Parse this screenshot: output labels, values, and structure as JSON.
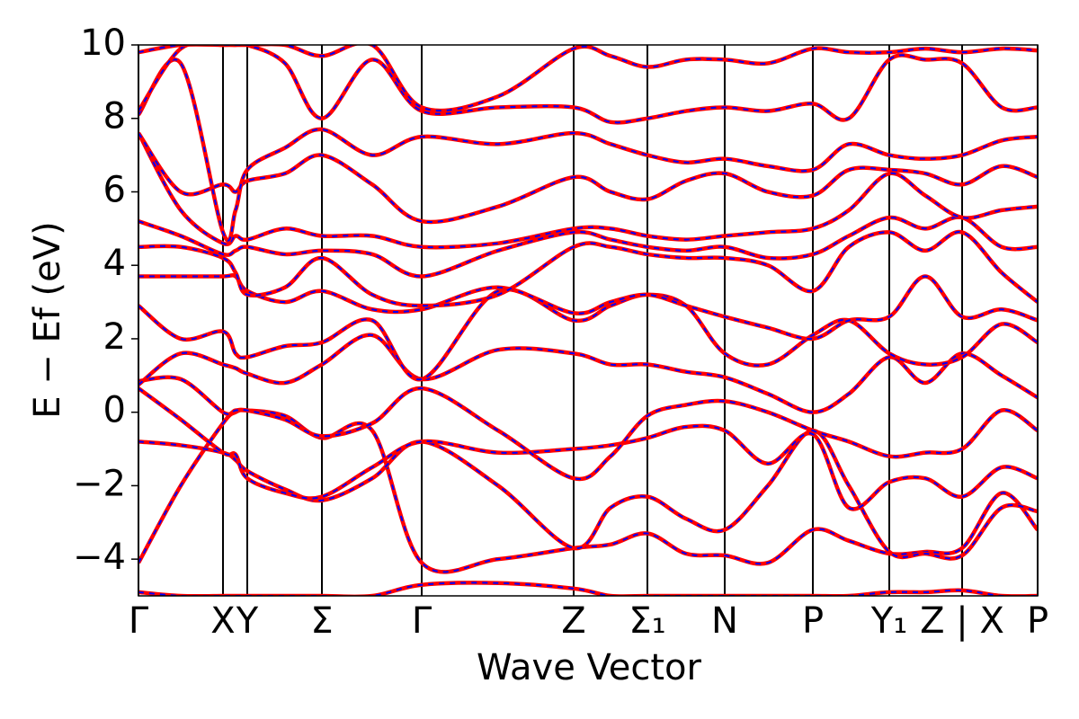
{
  "chart_data": {
    "type": "line",
    "xlabel": "Wave Vector",
    "ylabel": "E − Ef (eV)",
    "line_color": "#ff0000",
    "dash_color": "#0000ff",
    "xlim": [
      0,
      1.0
    ],
    "ylim": [
      -5,
      10
    ],
    "yticks": [
      {
        "value": -4,
        "label": "−4"
      },
      {
        "value": -2,
        "label": "−2"
      },
      0,
      2,
      4,
      6,
      8,
      10
    ],
    "xticks": [
      {
        "value": 0,
        "label": "Γ"
      },
      {
        "value": 0.094,
        "label": "X"
      },
      {
        "value": 0.121,
        "label": "Y"
      },
      {
        "value": 0.204,
        "label": "Σ"
      },
      {
        "value": 0.315,
        "label": "Γ"
      },
      {
        "value": 0.484,
        "label": "Z"
      },
      {
        "value": 0.566,
        "label": "Σ₁"
      },
      {
        "value": 0.652,
        "label": "N"
      },
      {
        "value": 0.75,
        "label": "P"
      },
      {
        "value": 0.835,
        "label": "Y₁"
      },
      {
        "value": 0.916,
        "label": "Z | X"
      },
      {
        "value": 1.0,
        "label": "P"
      }
    ],
    "x": [
      0,
      0.047,
      0.094,
      0.108,
      0.121,
      0.163,
      0.204,
      0.26,
      0.315,
      0.4,
      0.484,
      0.525,
      0.566,
      0.609,
      0.652,
      0.7,
      0.75,
      0.79,
      0.835,
      0.875,
      0.916,
      0.96,
      1.0
    ],
    "series": [
      {
        "values": [
          -4.9,
          -5,
          -5,
          -5,
          -5,
          -5,
          -5,
          -5,
          -4.7,
          -4.65,
          -4.8,
          -5,
          -5,
          -5,
          -5,
          -5,
          -5,
          -5,
          -4.9,
          -4.9,
          -4.85,
          -5,
          -5
        ]
      },
      {
        "values": [
          -4.1,
          -2.0,
          -0.3,
          0.0,
          0.05,
          -0.1,
          -0.7,
          -0.5,
          -4.1,
          -4.0,
          -3.7,
          -3.6,
          -3.3,
          -3.85,
          -3.9,
          -4.1,
          -3.2,
          -3.5,
          -3.85,
          -3.8,
          -3.7,
          -2.2,
          -3.2
        ]
      },
      {
        "values": [
          -0.8,
          -0.9,
          -1.1,
          -1.3,
          -1.6,
          -2.1,
          -2.4,
          -1.8,
          -0.8,
          -2.0,
          -3.7,
          -2.6,
          -2.3,
          -2.9,
          -3.2,
          -2.0,
          -0.5,
          -2.0,
          -3.8,
          -3.85,
          -3.9,
          -2.6,
          -2.7
        ]
      },
      {
        "values": [
          0.65,
          -0.2,
          -1.1,
          -1.15,
          -1.8,
          -2.2,
          -2.3,
          -1.5,
          -0.8,
          -1.1,
          -1.0,
          -0.9,
          -0.7,
          -0.4,
          -0.5,
          -1.4,
          -0.6,
          -2.6,
          -1.9,
          -1.8,
          -2.3,
          -1.5,
          -1.8
        ]
      },
      {
        "values": [
          0.85,
          0.9,
          0.0,
          0.05,
          0.05,
          -0.2,
          -0.65,
          -0.3,
          0.65,
          -0.5,
          -1.8,
          -1.2,
          -0.1,
          0.2,
          0.3,
          0.0,
          -0.5,
          -0.8,
          -1.2,
          -1.1,
          -1.0,
          0.05,
          -0.5
        ]
      },
      {
        "values": [
          0.75,
          1.6,
          1.3,
          1.2,
          1.05,
          0.8,
          1.3,
          2.1,
          0.9,
          1.7,
          1.6,
          1.3,
          1.3,
          1.1,
          0.95,
          0.5,
          0.0,
          0.5,
          1.5,
          0.8,
          1.6,
          1.0,
          0.4
        ]
      },
      {
        "values": [
          2.9,
          2.0,
          2.2,
          1.6,
          1.5,
          1.8,
          1.9,
          2.5,
          0.9,
          3.3,
          2.5,
          2.9,
          3.2,
          2.9,
          1.6,
          1.3,
          2.1,
          2.5,
          1.6,
          1.3,
          1.5,
          2.4,
          1.9
        ]
      },
      {
        "values": [
          3.7,
          3.7,
          3.7,
          3.7,
          3.3,
          3.0,
          3.3,
          2.8,
          2.8,
          3.4,
          2.7,
          3.0,
          3.2,
          2.9,
          2.6,
          2.3,
          2.0,
          2.5,
          2.6,
          3.7,
          2.6,
          2.8,
          2.5
        ]
      },
      {
        "values": [
          4.5,
          4.5,
          4.2,
          3.8,
          3.2,
          3.4,
          4.2,
          3.2,
          2.9,
          3.2,
          4.5,
          4.5,
          4.3,
          4.2,
          4.2,
          4.0,
          3.3,
          4.5,
          4.9,
          4.4,
          4.9,
          3.8,
          3.0
        ]
      },
      {
        "values": [
          5.2,
          4.8,
          4.3,
          4.4,
          4.5,
          4.3,
          4.4,
          4.3,
          3.7,
          4.4,
          4.9,
          4.7,
          4.5,
          4.4,
          4.5,
          4.2,
          4.3,
          4.8,
          5.3,
          5.0,
          5.3,
          4.5,
          4.5
        ]
      },
      {
        "values": [
          7.6,
          5.5,
          4.6,
          4.8,
          4.7,
          5.0,
          4.8,
          4.8,
          4.5,
          4.6,
          5.0,
          5.0,
          4.8,
          4.7,
          4.8,
          4.9,
          5.0,
          5.5,
          6.5,
          5.9,
          5.3,
          5.5,
          5.6
        ]
      },
      {
        "values": [
          7.6,
          6.0,
          6.2,
          6.0,
          6.3,
          6.5,
          7.0,
          6.2,
          5.2,
          5.6,
          6.4,
          6.0,
          5.8,
          6.3,
          6.5,
          6.0,
          5.9,
          6.6,
          6.6,
          6.5,
          6.2,
          6.7,
          6.4
        ]
      },
      {
        "values": [
          8.1,
          9.5,
          4.9,
          5.5,
          6.6,
          7.2,
          7.7,
          7.0,
          7.5,
          7.3,
          7.6,
          7.3,
          7.0,
          6.8,
          6.9,
          6.7,
          6.6,
          7.3,
          7.0,
          6.9,
          7.0,
          7.4,
          7.5
        ]
      },
      {
        "values": [
          8.2,
          9.9,
          10,
          10,
          10,
          9.5,
          8.0,
          9.6,
          8.2,
          8.3,
          8.3,
          7.9,
          8.0,
          8.2,
          8.3,
          8.2,
          8.4,
          8.0,
          9.6,
          9.6,
          9.5,
          8.3,
          8.3
        ]
      },
      {
        "values": [
          9.8,
          10,
          10,
          10,
          10,
          10,
          9.7,
          10,
          8.3,
          8.6,
          9.9,
          9.7,
          9.4,
          9.6,
          9.6,
          9.5,
          9.9,
          9.8,
          9.8,
          9.9,
          9.8,
          9.9,
          9.85
        ]
      }
    ]
  }
}
